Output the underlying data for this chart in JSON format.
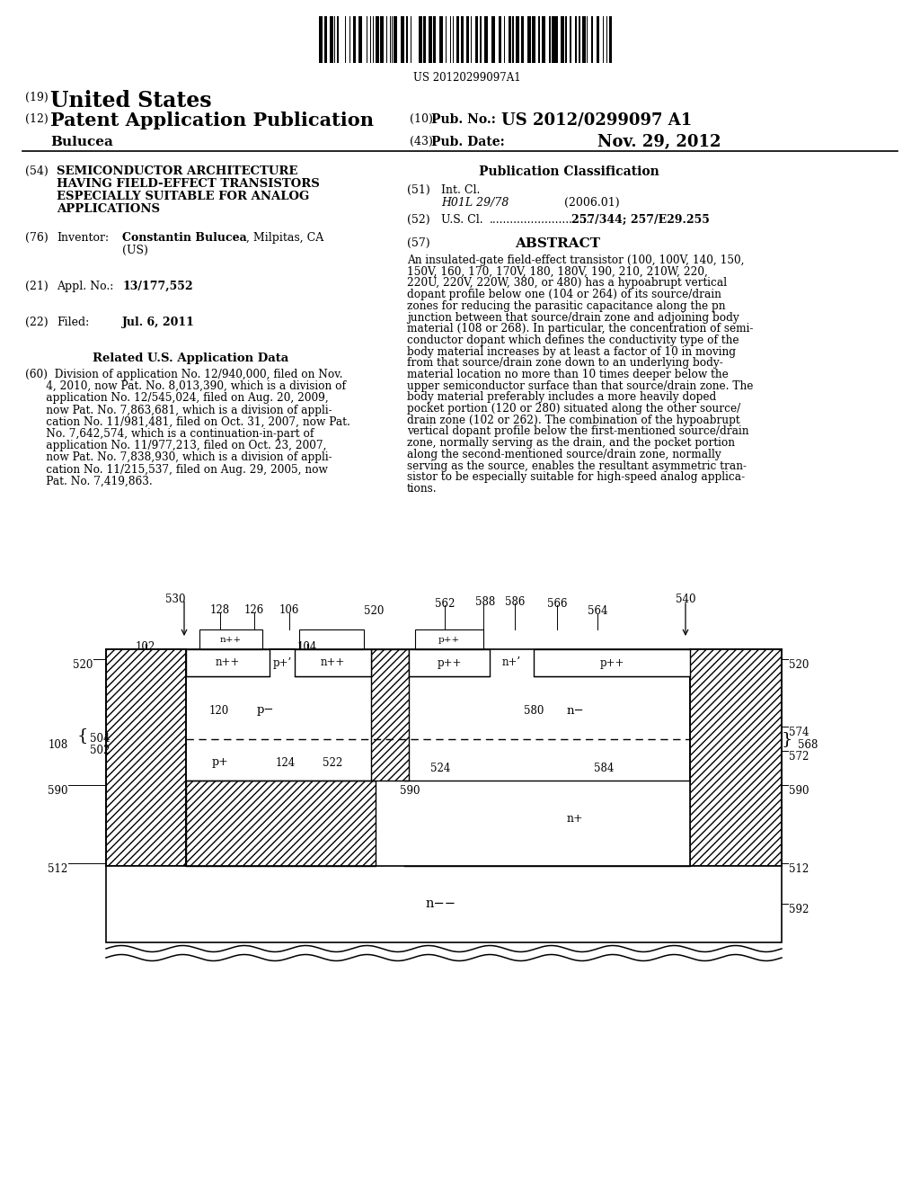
{
  "barcode_text": "US 20120299097A1",
  "header_19_text": "United States",
  "header_12_text": "Patent Application Publication",
  "header_10_val": "US 2012/0299097 A1",
  "header_43_val": "Nov. 29, 2012",
  "inventor_surname": "Bulucea",
  "f54_lines": [
    "SEMICONDUCTOR ARCHITECTURE",
    "HAVING FIELD-EFFECT TRANSISTORS",
    "ESPECIALLY SUITABLE FOR ANALOG",
    "APPLICATIONS"
  ],
  "f76_bold": "Constantin Bulucea",
  "f76_rest": ", Milpitas, CA",
  "f76_us": "(US)",
  "f21_val": "13/177,552",
  "f22_val": "Jul. 6, 2011",
  "related_title": "Related U.S. Application Data",
  "related_lines": [
    "(60)  Division of application No. 12/940,000, filed on Nov.",
    "      4, 2010, now Pat. No. 8,013,390, which is a division of",
    "      application No. 12/545,024, filed on Aug. 20, 2009,",
    "      now Pat. No. 7,863,681, which is a division of appli-",
    "      cation No. 11/981,481, filed on Oct. 31, 2007, now Pat.",
    "      No. 7,642,574, which is a continuation-in-part of",
    "      application No. 11/977,213, filed on Oct. 23, 2007,",
    "      now Pat. No. 7,838,930, which is a division of appli-",
    "      cation No. 11/215,537, filed on Aug. 29, 2005, now",
    "      Pat. No. 7,419,863."
  ],
  "pc_title": "Publication Classification",
  "f51_val": "H01L 29/78",
  "f51_date": "(2006.01)",
  "f52_val": "257/344; 257/E29.255",
  "abstract_lines": [
    "An insulated-gate field-effect transistor (100, 100V, 140, 150,",
    "150V, 160, 170, 170V, 180, 180V, 190, 210, 210W, 220,",
    "220U, 220V, 220W, 380, or 480) has a hypoabrupt vertical",
    "dopant profile below one (104 or 264) of its source/drain",
    "zones for reducing the parasitic capacitance along the pn",
    "junction between that source/drain zone and adjoining body",
    "material (108 or 268). In particular, the concentration of semi-",
    "conductor dopant which defines the conductivity type of the",
    "body material increases by at least a factor of 10 in moving",
    "from that source/drain zone down to an underlying body-",
    "material location no more than 10 times deeper below the",
    "upper semiconductor surface than that source/drain zone. The",
    "body material preferably includes a more heavily doped",
    "pocket portion (120 or 280) situated along the other source/",
    "drain zone (102 or 262). The combination of the hypoabrupt",
    "vertical dopant profile below the first-mentioned source/drain",
    "zone, normally serving as the drain, and the pocket portion",
    "along the second-mentioned source/drain zone, normally",
    "serving as the source, enables the resultant asymmetric tran-",
    "sistor to be especially suitable for high-speed analog applica-",
    "tions."
  ]
}
